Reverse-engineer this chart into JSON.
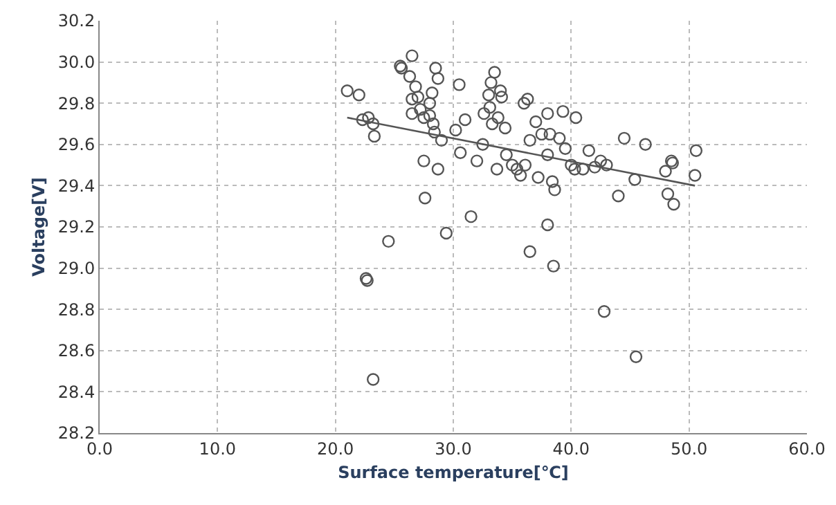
{
  "chart_data": {
    "type": "scatter",
    "xlabel": "Surface temperature[℃]",
    "ylabel": "Voltage[V]",
    "xlim": [
      0,
      60
    ],
    "ylim": [
      28.2,
      30.2
    ],
    "xticks": [
      {
        "value": 0,
        "label": "0.0"
      },
      {
        "value": 10,
        "label": "10.0"
      },
      {
        "value": 20,
        "label": "20.0"
      },
      {
        "value": 30,
        "label": "30.0"
      },
      {
        "value": 40,
        "label": "40.0"
      },
      {
        "value": 50,
        "label": "50.0"
      },
      {
        "value": 60,
        "label": "60.0"
      }
    ],
    "yticks": [
      {
        "value": 28.2,
        "label": "28.2"
      },
      {
        "value": 28.4,
        "label": "28.4"
      },
      {
        "value": 28.6,
        "label": "28.6"
      },
      {
        "value": 28.8,
        "label": "28.8"
      },
      {
        "value": 29.0,
        "label": "29.0"
      },
      {
        "value": 29.2,
        "label": "29.2"
      },
      {
        "value": 29.4,
        "label": "29.4"
      },
      {
        "value": 29.6,
        "label": "29.6"
      },
      {
        "value": 29.8,
        "label": "29.8"
      },
      {
        "value": 30.0,
        "label": "30.0"
      },
      {
        "value": 30.2,
        "label": "30.2"
      }
    ],
    "grid": true,
    "marker": "circle",
    "series": [
      {
        "color": "#555555",
        "x": [
          21.0,
          22.0,
          22.3,
          22.8,
          23.2,
          23.3,
          22.6,
          22.7,
          23.2,
          24.5,
          25.5,
          25.6,
          26.5,
          26.3,
          26.8,
          26.5,
          27.0,
          26.5,
          27.2,
          27.5,
          28.0,
          28.2,
          28.0,
          28.3,
          27.5,
          27.6,
          28.5,
          28.7,
          28.4,
          29.0,
          28.7,
          29.4,
          30.5,
          30.2,
          31.0,
          30.6,
          31.5,
          32.0,
          32.5,
          32.6,
          33.0,
          33.2,
          33.5,
          33.1,
          33.3,
          34.0,
          34.1,
          33.8,
          34.4,
          33.7,
          34.5,
          35.0,
          35.4,
          35.7,
          36.0,
          36.3,
          36.5,
          36.1,
          36.5,
          37.0,
          37.5,
          37.2,
          38.0,
          38.2,
          38.0,
          38.4,
          38.6,
          38.0,
          38.5,
          39.0,
          39.3,
          39.5,
          40.0,
          40.3,
          40.4,
          41.0,
          41.5,
          42.0,
          42.5,
          43.0,
          42.8,
          44.5,
          44.0,
          45.4,
          45.5,
          46.3,
          48.0,
          48.5,
          48.6,
          48.2,
          48.7,
          50.6,
          50.5
        ],
        "values": [
          29.86,
          29.84,
          29.72,
          29.73,
          29.7,
          29.64,
          28.95,
          28.94,
          28.46,
          29.13,
          29.98,
          29.97,
          30.03,
          29.93,
          29.88,
          29.82,
          29.83,
          29.75,
          29.77,
          29.73,
          29.8,
          29.85,
          29.74,
          29.7,
          29.52,
          29.34,
          29.97,
          29.92,
          29.66,
          29.62,
          29.48,
          29.17,
          29.89,
          29.67,
          29.72,
          29.56,
          29.25,
          29.52,
          29.6,
          29.75,
          29.84,
          29.9,
          29.95,
          29.78,
          29.7,
          29.86,
          29.83,
          29.73,
          29.68,
          29.48,
          29.55,
          29.5,
          29.48,
          29.45,
          29.8,
          29.82,
          29.62,
          29.5,
          29.08,
          29.71,
          29.65,
          29.44,
          29.75,
          29.65,
          29.55,
          29.42,
          29.38,
          29.21,
          29.01,
          29.63,
          29.76,
          29.58,
          29.5,
          29.48,
          29.73,
          29.48,
          29.57,
          29.49,
          29.52,
          29.5,
          28.79,
          29.63,
          29.35,
          29.43,
          28.57,
          29.6,
          29.47,
          29.52,
          29.51,
          29.36,
          29.31,
          29.57,
          29.45
        ]
      },
      {
        "type": "line",
        "color": "#555555",
        "marker": "none",
        "line_style": "solid",
        "x": [
          21.0,
          50.5
        ],
        "values": [
          29.73,
          29.4
        ]
      }
    ]
  }
}
